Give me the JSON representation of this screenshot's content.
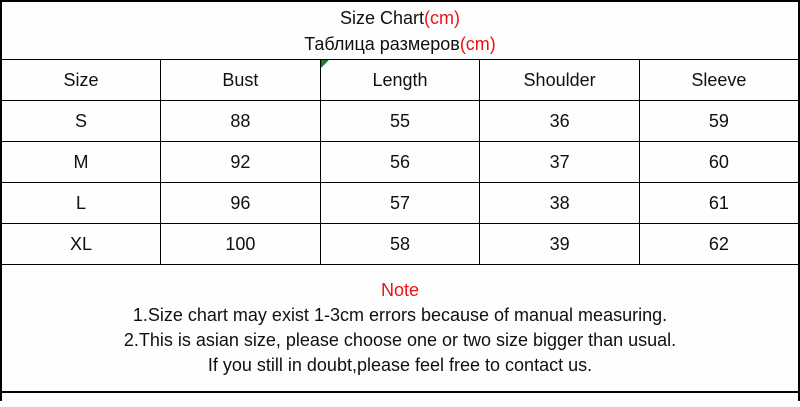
{
  "title": {
    "en": "Size Chart",
    "en_unit": "(cm)",
    "ru": "Таблица размеров",
    "ru_unit": "(cm)"
  },
  "note": {
    "heading": "Note",
    "lines": [
      "1.Size chart may exist 1-3cm errors because of manual measuring.",
      "2.This is asian size, please choose one or two size bigger than usual.",
      "If you still in doubt,please feel free to contact us."
    ]
  },
  "colors": {
    "accent_red": "#ee1113",
    "marker_green": "#1e7b2d",
    "border": "#000000",
    "text": "#101010",
    "background": "#ffffff"
  },
  "chart_data": {
    "type": "table",
    "title": "Size Chart(cm)",
    "subtitle": "Таблица размеров(cm)",
    "unit": "cm",
    "columns": [
      "Size",
      "Bust",
      "Length",
      "Shoulder",
      "Sleeve"
    ],
    "rows": [
      [
        "S",
        "88",
        "55",
        "36",
        "59"
      ],
      [
        "M",
        "92",
        "56",
        "37",
        "60"
      ],
      [
        "L",
        "96",
        "57",
        "38",
        "61"
      ],
      [
        "XL",
        "100",
        "58",
        "39",
        "62"
      ]
    ],
    "notes": [
      "1.Size chart may exist 1-3cm errors because of manual measuring.",
      "2.This is asian size, please choose one or two size bigger than usual.",
      "If you still in doubt,please feel free to contact us."
    ]
  }
}
